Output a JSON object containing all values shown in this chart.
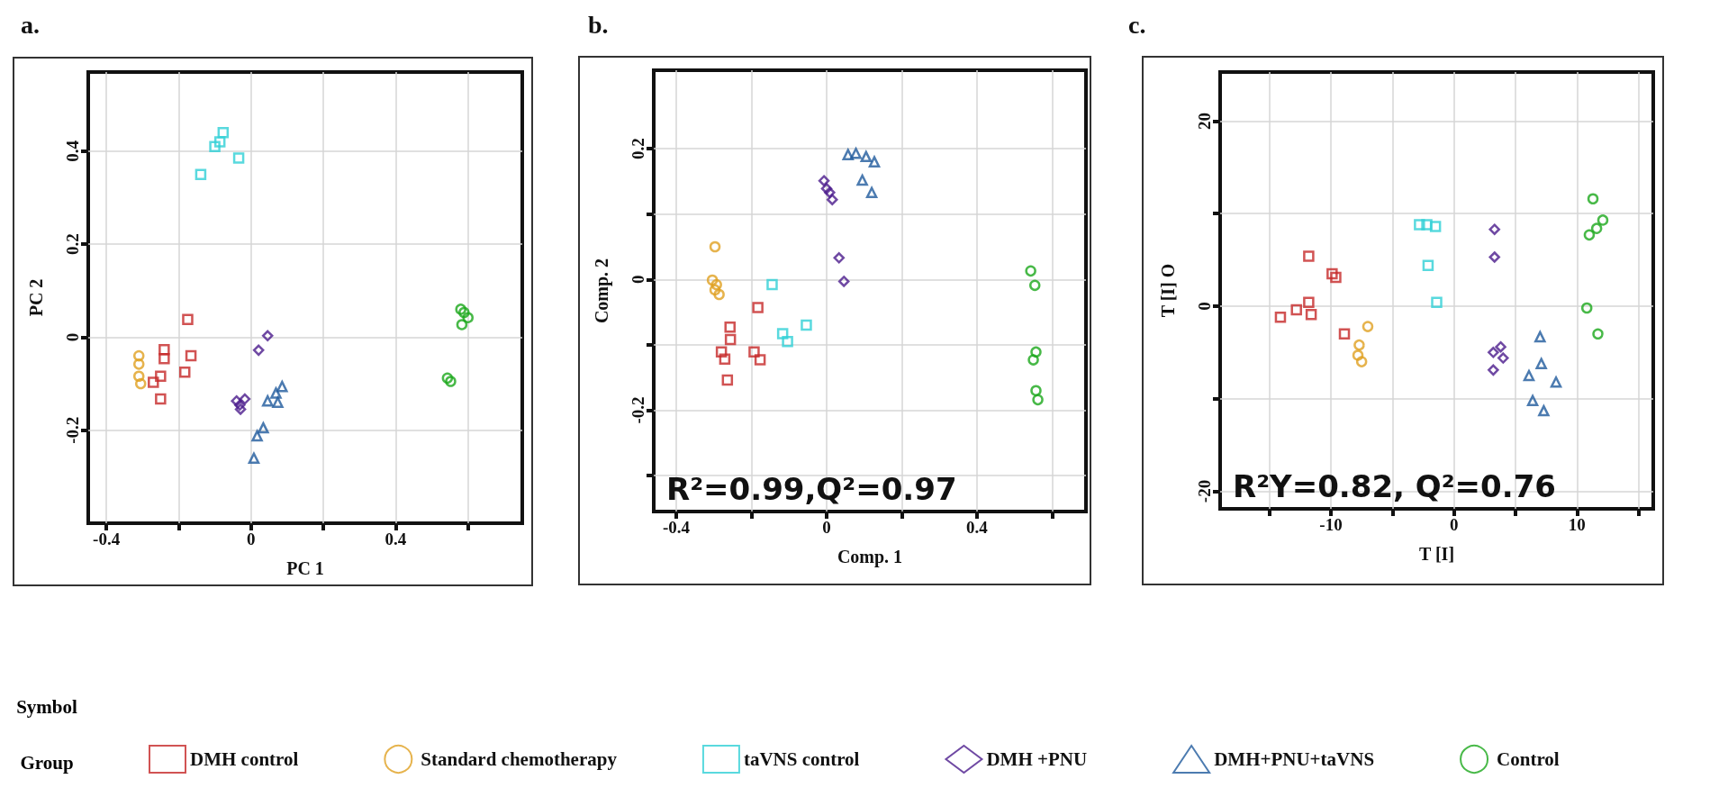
{
  "chart_data": [
    {
      "type": "scatter",
      "title": "a.",
      "xlabel": "PC 1",
      "ylabel": "PC 2",
      "xlim": [
        -0.45,
        0.75
      ],
      "ylim": [
        -0.4,
        0.57
      ],
      "xticks": [
        -0.4,
        {
          "value": -0.2,
          "label": null
        },
        0,
        {
          "value": 0.2,
          "label": null
        },
        0.4,
        {
          "value": 0.6,
          "label": null
        }
      ],
      "yticks": [
        -0.2,
        0,
        0.2,
        0.4
      ],
      "grid": true,
      "legend": "bottom",
      "legend_title": "Group",
      "annotations": [
        "Symbol"
      ],
      "series": [
        {
          "name": "DMH control",
          "color": "#c62828",
          "marker": "square",
          "x": [
            -0.175,
            -0.24,
            -0.24,
            -0.166,
            -0.183,
            -0.25,
            -0.27,
            -0.25
          ],
          "values": [
            0.038,
            -0.027,
            -0.046,
            -0.04,
            -0.075,
            -0.084,
            -0.097,
            -0.133
          ]
        },
        {
          "name": "Standard chemotherapy",
          "color": "#e0a020",
          "marker": "circle",
          "x": [
            -0.31,
            -0.31,
            -0.31,
            -0.305
          ],
          "values": [
            -0.04,
            -0.058,
            -0.084,
            -0.1
          ]
        },
        {
          "name": "taVNS control",
          "color": "#2fcfd6",
          "marker": "square",
          "x": [
            -0.086,
            -0.077,
            -0.034,
            -0.139,
            -0.1
          ],
          "values": [
            0.42,
            0.44,
            0.385,
            0.35,
            0.41
          ]
        },
        {
          "name": "DMH +PNU",
          "color": "#4b1b8c",
          "marker": "diamond",
          "x": [
            0.046,
            0.021,
            -0.017,
            -0.031,
            -0.04,
            -0.029
          ],
          "values": [
            0.003,
            -0.028,
            -0.133,
            -0.146,
            -0.137,
            -0.155
          ]
        },
        {
          "name": "DMH+PNU+taVNS",
          "color": "#1f5a9c",
          "marker": "triangle",
          "x": [
            0.086,
            0.069,
            0.074,
            0.046,
            0.034,
            0.017,
            0.008
          ],
          "values": [
            -0.106,
            -0.12,
            -0.14,
            -0.137,
            -0.195,
            -0.212,
            -0.26
          ]
        },
        {
          "name": "Control",
          "color": "#1aa81a",
          "marker": "circle",
          "x": [
            0.58,
            0.6,
            0.583,
            0.589,
            0.543,
            0.552
          ],
          "values": [
            0.06,
            0.042,
            0.027,
            0.053,
            -0.088,
            -0.095
          ]
        }
      ]
    },
    {
      "type": "scatter",
      "title": "b.",
      "xlabel": "Comp. 1",
      "ylabel": "Comp. 2",
      "xlim": [
        -0.46,
        0.69
      ],
      "ylim": [
        -0.355,
        0.32
      ],
      "xticks": [
        -0.4,
        {
          "value": -0.2,
          "label": null
        },
        0,
        {
          "value": 0.2,
          "label": null
        },
        0.4,
        {
          "value": 0.6,
          "label": null
        }
      ],
      "yticks": [
        {
          "value": -0.3,
          "label": null
        },
        -0.2,
        {
          "value": -0.1,
          "label": null
        },
        0,
        {
          "value": 0.1,
          "label": null
        },
        0.2
      ],
      "grid": true,
      "annotations": [
        "R²=0.99,Q²=0.97"
      ],
      "series": [
        {
          "color": "#c62828",
          "marker": "square",
          "x": [
            -0.183,
            -0.257,
            -0.256,
            -0.28,
            -0.271,
            -0.193,
            -0.177,
            -0.264
          ],
          "values": [
            -0.043,
            -0.073,
            -0.092,
            -0.111,
            -0.122,
            -0.111,
            -0.123,
            -0.154
          ]
        },
        {
          "color": "#e0a020",
          "marker": "circle",
          "x": [
            -0.297,
            -0.304,
            -0.293,
            -0.286,
            -0.297
          ],
          "values": [
            0.05,
            -0.001,
            -0.008,
            -0.023,
            -0.016
          ]
        },
        {
          "color": "#2fcfd6",
          "marker": "square",
          "x": [
            -0.145,
            -0.054,
            -0.117,
            -0.104
          ],
          "values": [
            -0.008,
            -0.07,
            -0.083,
            -0.095
          ]
        },
        {
          "color": "#4b1b8c",
          "marker": "diamond",
          "x": [
            -0.007,
            0,
            0.008,
            0.015,
            0.033,
            0.046
          ],
          "values": [
            0.151,
            0.139,
            0.133,
            0.122,
            0.033,
            -0.003
          ]
        },
        {
          "color": "#1f5a9c",
          "marker": "triangle",
          "x": [
            0.057,
            0.078,
            0.105,
            0.127,
            0.095,
            0.12
          ],
          "values": [
            0.191,
            0.193,
            0.188,
            0.18,
            0.152,
            0.133
          ]
        },
        {
          "color": "#1aa81a",
          "marker": "circle",
          "x": [
            0.543,
            0.554,
            0.557,
            0.55,
            0.557,
            0.562
          ],
          "values": [
            0.013,
            -0.009,
            -0.111,
            -0.123,
            -0.17,
            -0.184
          ]
        }
      ]
    },
    {
      "type": "scatter",
      "title": "c.",
      "xlabel": "T [I]",
      "ylabel": "T [I] O",
      "xlim": [
        -19,
        16.2
      ],
      "ylim": [
        -21.9,
        25.3
      ],
      "xticks": [
        {
          "value": -15,
          "label": null
        },
        -10,
        {
          "value": -5,
          "label": null
        },
        0,
        {
          "value": 5,
          "label": null
        },
        10,
        {
          "value": 15,
          "label": null
        }
      ],
      "yticks": [
        -20,
        {
          "value": -10,
          "label": null
        },
        0,
        {
          "value": 10,
          "label": null
        },
        20
      ],
      "grid": true,
      "annotations": [
        "R²Y=0.82, Q²=0.76"
      ],
      "series": [
        {
          "color": "#c62828",
          "marker": "square",
          "x": [
            -11.8,
            -9.9,
            -9.6,
            -14.1,
            -12.8,
            -11.8,
            -11.6,
            -8.9
          ],
          "values": [
            5.4,
            3.5,
            3.1,
            -1.2,
            -0.4,
            0.4,
            -0.9,
            -3.0
          ]
        },
        {
          "color": "#e0a020",
          "marker": "circle",
          "x": [
            -7,
            -7.7,
            -7.8,
            -7.5
          ],
          "values": [
            -2.2,
            -4.2,
            -5.3,
            -6.0
          ]
        },
        {
          "color": "#2fcfd6",
          "marker": "square",
          "x": [
            -2.8,
            -2.2,
            -1.5,
            -2.1,
            -1.4
          ],
          "values": [
            8.8,
            8.8,
            8.6,
            4.4,
            0.4
          ]
        },
        {
          "color": "#4b1b8c",
          "marker": "diamond",
          "x": [
            3.3,
            3.3,
            3.2,
            3.8,
            4.0,
            3.2
          ],
          "values": [
            8.3,
            5.3,
            -5.0,
            -4.4,
            -5.6,
            -6.9
          ]
        },
        {
          "color": "#1f5a9c",
          "marker": "triangle",
          "x": [
            7.0,
            7.1,
            6.1,
            8.3,
            6.4,
            7.3
          ],
          "values": [
            -3.3,
            -6.2,
            -7.5,
            -8.2,
            -10.2,
            -11.3
          ]
        },
        {
          "color": "#1aa81a",
          "marker": "circle",
          "x": [
            11.3,
            12.1,
            11.0,
            10.8,
            11.7,
            11.6
          ],
          "values": [
            11.6,
            9.3,
            7.7,
            -0.2,
            -3.0,
            8.4
          ]
        }
      ]
    }
  ]
}
